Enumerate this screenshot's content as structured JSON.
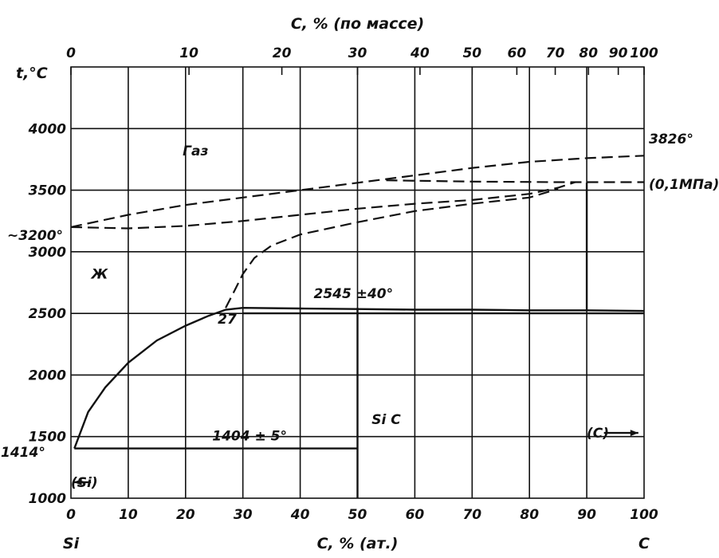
{
  "chart_data": {
    "type": "line",
    "title": "",
    "top_axis": {
      "label": "C, % (по массе)",
      "ticks": [
        {
          "label": "0",
          "at_at_pct": 0
        },
        {
          "label": "10",
          "at_at_pct": 20.6
        },
        {
          "label": "20",
          "at_at_pct": 36.8
        },
        {
          "label": "30",
          "at_at_pct": 50.0
        },
        {
          "label": "40",
          "at_at_pct": 60.9
        },
        {
          "label": "50",
          "at_at_pct": 70.0
        },
        {
          "label": "60",
          "at_at_pct": 77.8
        },
        {
          "label": "70",
          "at_at_pct": 84.5
        },
        {
          "label": "80",
          "at_at_pct": 90.3
        },
        {
          "label": "90",
          "at_at_pct": 95.5
        },
        {
          "label": "100",
          "at_at_pct": 100
        }
      ]
    },
    "x_axis": {
      "label": "C, % (ат.)",
      "ticks": [
        "0",
        "10",
        "20",
        "30",
        "40",
        "50",
        "60",
        "70",
        "80",
        "90",
        "100"
      ],
      "range": [
        0,
        100
      ],
      "left_end_label": "Si",
      "right_end_label": "C"
    },
    "y_axis": {
      "label": "t,°C",
      "ticks": [
        "1000",
        "1500",
        "2000",
        "2500",
        "3000",
        "3500",
        "4000"
      ],
      "range": [
        1000,
        4500
      ]
    },
    "grid": true,
    "regions": [
      {
        "label": "Газ",
        "x": 12,
        "y": 3820
      },
      {
        "label": "Ж",
        "x": 5,
        "y": 2820
      },
      {
        "label": "Si C",
        "x": 55,
        "y": 1640
      }
    ],
    "annotations": [
      {
        "label": "3826°",
        "x": 100,
        "y": 3826
      },
      {
        "label": "(0,1МПа)",
        "x": 100,
        "y": 3600
      },
      {
        "label": "~3200°",
        "x": 0,
        "y": 3200
      },
      {
        "label": "2545 ±40°",
        "x": 50,
        "y": 2545
      },
      {
        "label": "27",
        "x": 27,
        "y": 2545
      },
      {
        "label": "1404 ± 5°",
        "x": 33,
        "y": 1404
      },
      {
        "label": "1414°",
        "x": 0,
        "y": 1414
      },
      {
        "label": "(C)",
        "x": 100,
        "y": 1530
      },
      {
        "label": "(Si)",
        "x": 0,
        "y": 1130
      }
    ],
    "series": [
      {
        "style": "solid",
        "x": [
          0.6,
          3,
          6,
          10,
          15,
          20,
          24,
          27,
          30,
          40,
          50,
          60,
          70,
          80,
          90,
          100
        ],
        "y": [
          1404,
          1700,
          1900,
          2100,
          2280,
          2400,
          2480,
          2530,
          2545,
          2540,
          2535,
          2530,
          2530,
          2525,
          2525,
          2520
        ]
      },
      {
        "style": "solid",
        "x": [
          0.6,
          50
        ],
        "y": [
          1404,
          1404
        ]
      },
      {
        "style": "solid",
        "x": [
          50,
          50
        ],
        "y": [
          1000,
          2545
        ]
      },
      {
        "style": "solid",
        "x": [
          30,
          100
        ],
        "y": [
          2500,
          2500
        ]
      },
      {
        "style": "solid",
        "x": [
          90,
          90
        ],
        "y": [
          2520,
          3560
        ]
      },
      {
        "style": "dashed",
        "x": [
          0,
          10,
          20,
          30,
          40,
          50,
          60,
          70,
          80,
          90,
          100
        ],
        "y": [
          3200,
          3300,
          3380,
          3440,
          3500,
          3560,
          3620,
          3680,
          3730,
          3760,
          3780
        ]
      },
      {
        "style": "dashed",
        "x": [
          0,
          10,
          20,
          30,
          40,
          50,
          60,
          70,
          80,
          85,
          88
        ],
        "y": [
          3200,
          3190,
          3210,
          3250,
          3300,
          3350,
          3390,
          3420,
          3470,
          3520,
          3565
        ]
      },
      {
        "style": "dashed",
        "x": [
          27,
          28.5,
          30,
          32,
          35,
          40,
          50,
          60,
          70,
          80,
          85
        ],
        "y": [
          2545,
          2680,
          2820,
          2950,
          3050,
          3140,
          3240,
          3330,
          3390,
          3440,
          3510
        ]
      },
      {
        "style": "dashed",
        "x": [
          55,
          70,
          85,
          90,
          100
        ],
        "y": [
          3580,
          3570,
          3565,
          3565,
          3565
        ]
      }
    ]
  }
}
